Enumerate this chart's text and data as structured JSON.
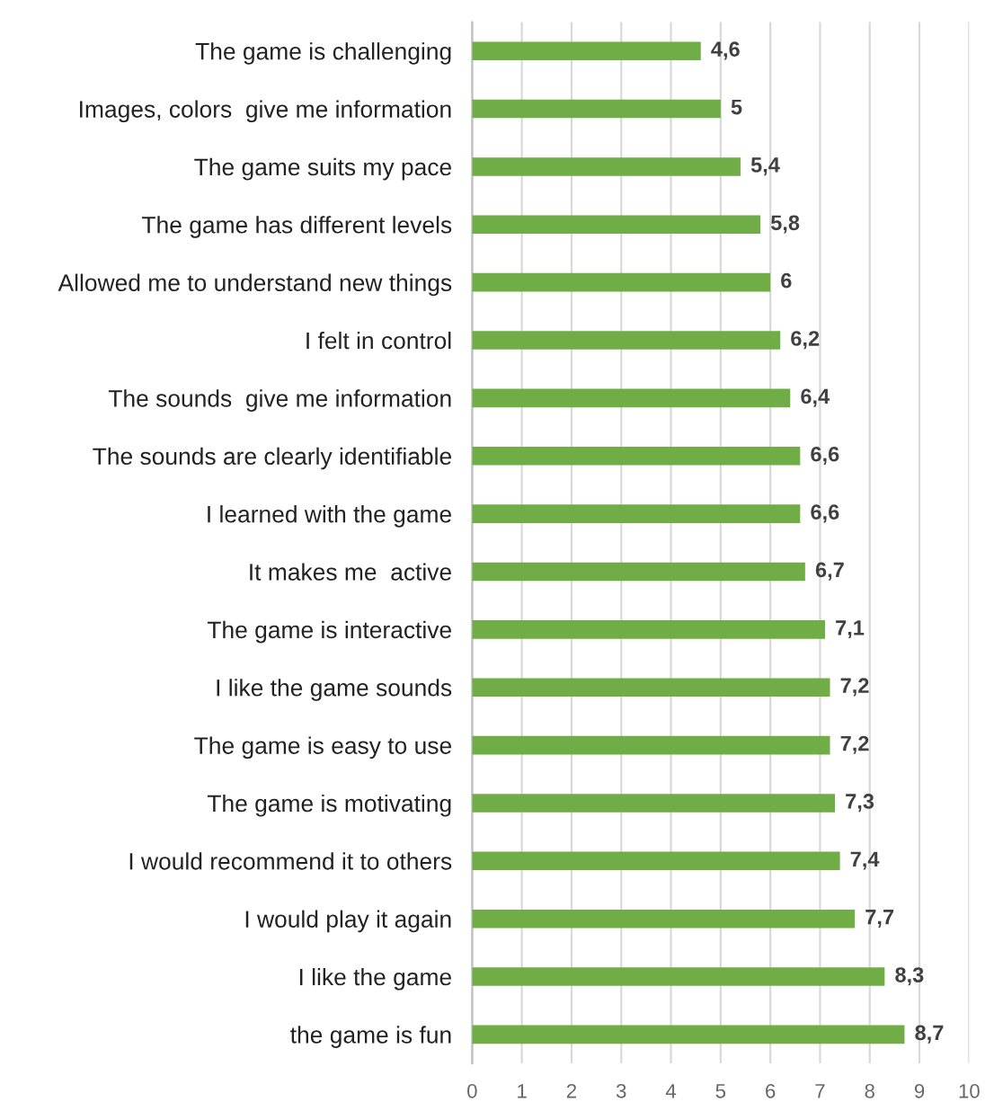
{
  "chart_data": {
    "type": "bar",
    "orientation": "horizontal",
    "categories": [
      "The game is challenging",
      "Images, colors  give me information",
      "The game suits my pace",
      "The game has different levels",
      "Allowed me to understand new things",
      "I felt in control",
      "The sounds  give me information",
      "The sounds are clearly identifiable",
      "I learned with the game",
      "It makes me  active",
      "The game is interactive",
      "I like the game sounds",
      "The game is easy to use",
      "The game is motivating",
      "I would recommend it to others",
      "I would play it again",
      "I like the game",
      "the game is fun"
    ],
    "values": [
      4.6,
      5,
      5.4,
      5.8,
      6,
      6.2,
      6.4,
      6.6,
      6.6,
      6.7,
      7.1,
      7.2,
      7.2,
      7.3,
      7.4,
      7.7,
      8.3,
      8.7
    ],
    "value_labels": [
      "4,6",
      "5",
      "5,4",
      "5,8",
      "6",
      "6,2",
      "6,4",
      "6,6",
      "6,6",
      "6,7",
      "7,1",
      "7,2",
      "7,2",
      "7,3",
      "7,4",
      "7,7",
      "8,3",
      "8,7"
    ],
    "color": "#70ad47",
    "xlim": [
      0,
      10
    ],
    "xticks": [
      0,
      1,
      2,
      3,
      4,
      5,
      6,
      7,
      8,
      9,
      10
    ],
    "grid": "x",
    "legend": false
  }
}
